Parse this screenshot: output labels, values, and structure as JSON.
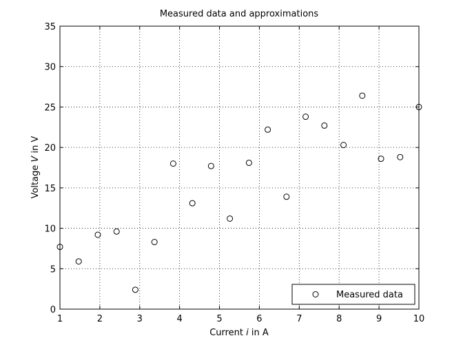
{
  "chart_data": {
    "type": "scatter",
    "title": "Measured data and approximations",
    "xlabel": "Current i in A",
    "xlabel_parts": {
      "before": "Current ",
      "italic": "i",
      "after": " in A"
    },
    "ylabel": "Voltage V in V",
    "ylabel_parts": {
      "before": "Voltage ",
      "italic": "V",
      "after": " in V"
    },
    "xlim": [
      1,
      10
    ],
    "ylim": [
      0,
      35
    ],
    "xticks": [
      1,
      2,
      3,
      4,
      5,
      6,
      7,
      8,
      9,
      10
    ],
    "yticks": [
      0,
      5,
      10,
      15,
      20,
      25,
      30,
      35
    ],
    "grid": true,
    "legend_position": "bottom-right",
    "series": [
      {
        "name": "Measured data",
        "marker": "open-circle",
        "color": "#000000",
        "x": [
          1.0,
          1.47,
          1.95,
          2.42,
          2.89,
          3.37,
          3.84,
          4.32,
          4.79,
          5.26,
          5.74,
          6.21,
          6.68,
          7.16,
          7.63,
          8.11,
          8.58,
          9.05,
          9.53,
          10.0
        ],
        "y": [
          7.7,
          5.9,
          9.2,
          9.6,
          2.4,
          8.3,
          18.0,
          13.1,
          17.7,
          11.2,
          18.1,
          22.2,
          13.9,
          23.8,
          22.7,
          20.3,
          26.4,
          18.6,
          18.8,
          25.0
        ]
      }
    ]
  }
}
